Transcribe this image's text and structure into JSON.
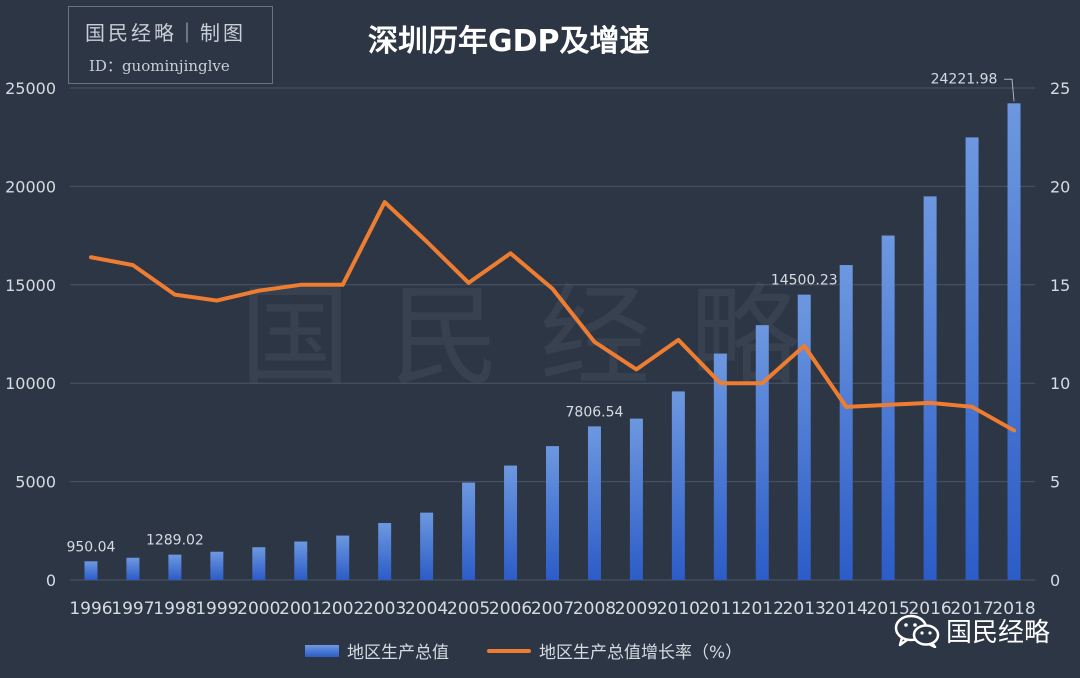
{
  "branding": {
    "title": "国民经略｜制图",
    "id_text": "ID：guominjinglve",
    "watermark": "国民经略",
    "account_name": "国民经略"
  },
  "colors": {
    "background": "#2c3645",
    "bar": "#3e6fd2",
    "line": "#ee7d31",
    "text": "#d6dbe2"
  },
  "chart_data": {
    "type": "bar",
    "title": "深圳历年GDP及增速",
    "categories": [
      "1996",
      "1997",
      "1998",
      "1999",
      "2000",
      "2001",
      "2002",
      "2003",
      "2004",
      "2005",
      "2006",
      "2007",
      "2008",
      "2009",
      "2010",
      "2011",
      "2012",
      "2013",
      "2014",
      "2015",
      "2016",
      "2017",
      "2018"
    ],
    "series": [
      {
        "name": "地区生产总值",
        "type": "bar",
        "axis": "left",
        "values": [
          950.04,
          1130,
          1289.02,
          1436,
          1665,
          1955,
          2257,
          2895,
          3423,
          4951,
          5814,
          6802,
          7806.54,
          8201,
          9582,
          11505,
          12950,
          14500.23,
          16002,
          17503,
          19493,
          22490,
          24221.98
        ]
      },
      {
        "name": "地区生产总值增长率（%）",
        "type": "line",
        "axis": "right",
        "values": [
          16.4,
          16.0,
          14.5,
          14.2,
          14.7,
          15.0,
          15.0,
          19.2,
          17.2,
          15.1,
          16.6,
          14.8,
          12.1,
          10.7,
          12.2,
          10.0,
          10.0,
          11.9,
          8.8,
          8.9,
          9.0,
          8.8,
          7.6
        ]
      }
    ],
    "data_labels": [
      {
        "category": "1996",
        "text": "950.04"
      },
      {
        "category": "1998",
        "text": "1289.02"
      },
      {
        "category": "2008",
        "text": "7806.54"
      },
      {
        "category": "2013",
        "text": "14500.23"
      },
      {
        "category": "2018",
        "text": "24221.98"
      }
    ],
    "y_left": {
      "min": 0,
      "max": 25000,
      "ticks": [
        "0",
        "5000",
        "10000",
        "15000",
        "20000",
        "25000"
      ]
    },
    "y_right": {
      "min": 0,
      "max": 25,
      "ticks": [
        "0",
        "5",
        "10",
        "15",
        "20",
        "25"
      ]
    },
    "grid": true,
    "legend_position": "bottom"
  }
}
